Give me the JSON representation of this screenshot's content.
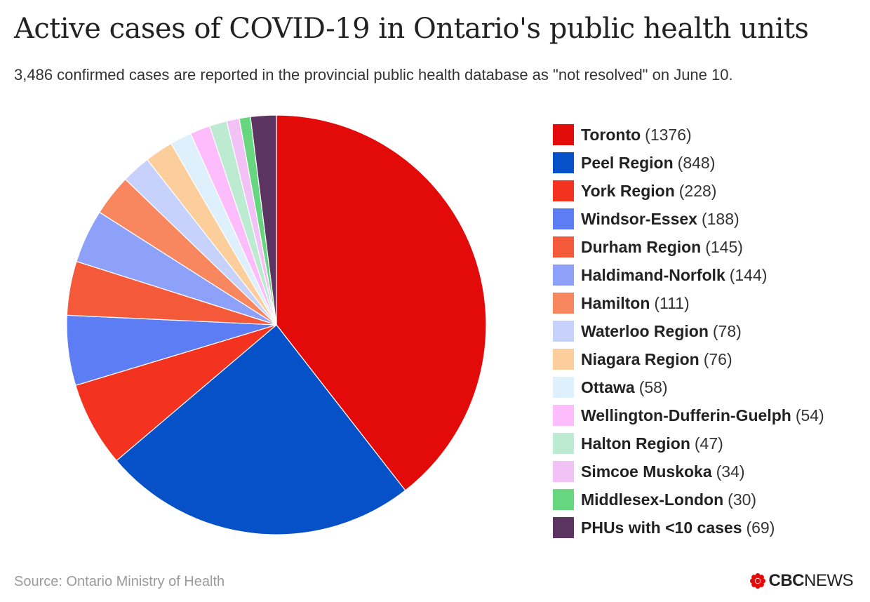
{
  "header": {
    "title": "Active cases of COVID-19 in Ontario's public health units",
    "subtitle": "3,486 confirmed cases are reported in the provincial public health database as \"not resolved\" on June 10."
  },
  "chart_data": {
    "type": "pie",
    "title": "Active cases of COVID-19 in Ontario's public health units",
    "subtitle": "3,486 confirmed cases are reported in the provincial public health database as \"not resolved\" on June 10.",
    "legend_position": "right",
    "start_angle": "top, clockwise",
    "slices": [
      {
        "label": "Toronto",
        "count": "(1376)",
        "value": 1376,
        "color": "#e30a0a"
      },
      {
        "label": "Peel Region",
        "count": "(848)",
        "value": 848,
        "color": "#0650c8"
      },
      {
        "label": "York Region",
        "count": "(228)",
        "value": 228,
        "color": "#f3321f"
      },
      {
        "label": "Windsor-Essex",
        "count": "(188)",
        "value": 188,
        "color": "#5c7df4"
      },
      {
        "label": "Durham Region",
        "count": "(145)",
        "value": 145,
        "color": "#f45a3a"
      },
      {
        "label": "Haldimand-Norfolk",
        "count": "(144)",
        "value": 144,
        "color": "#8da1f8"
      },
      {
        "label": "Hamilton",
        "count": "(111)",
        "value": 111,
        "color": "#f8875f"
      },
      {
        "label": "Waterloo Region",
        "count": "(78)",
        "value": 78,
        "color": "#c6d2fb"
      },
      {
        "label": "Niagara Region",
        "count": "(76)",
        "value": 76,
        "color": "#fcce9c"
      },
      {
        "label": "Ottawa",
        "count": "(58)",
        "value": 58,
        "color": "#dff0fd"
      },
      {
        "label": "Wellington-Dufferin-Guelph",
        "count": "(54)",
        "value": 54,
        "color": "#fdbdfd"
      },
      {
        "label": "Halton Region",
        "count": "(47)",
        "value": 47,
        "color": "#bdebd2"
      },
      {
        "label": "Simcoe Muskoka",
        "count": "(34)",
        "value": 34,
        "color": "#f2c2f7"
      },
      {
        "label": "Middlesex-London",
        "count": "(30)",
        "value": 30,
        "color": "#66d67f"
      },
      {
        "label": "PHUs with <10 cases",
        "count": "(69)",
        "value": 69,
        "color": "#5c3462"
      }
    ]
  },
  "footer": {
    "source": "Source: Ontario Ministry of Health",
    "brand_cbc": "CBC",
    "brand_news": "NEWS",
    "brand_gem_color": "#e30a0a"
  }
}
